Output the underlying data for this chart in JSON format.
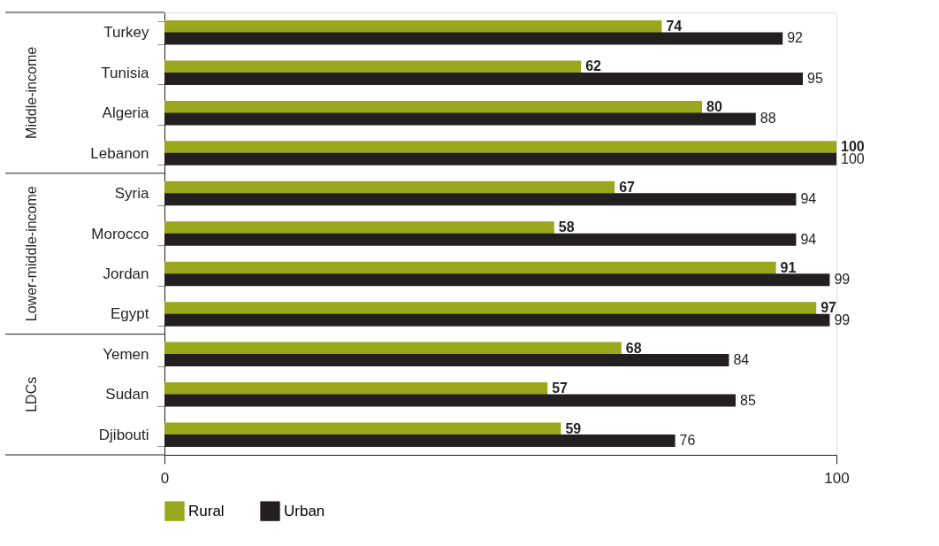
{
  "chart_data": {
    "type": "bar",
    "orientation": "horizontal",
    "categories": [
      "Turkey",
      "Tunisia",
      "Algeria",
      "Lebanon",
      "Syria",
      "Morocco",
      "Jordan",
      "Egypt",
      "Yemen",
      "Sudan",
      "Djibouti"
    ],
    "series": [
      {
        "name": "Rural",
        "color": "#9aa61c",
        "values": [
          74,
          62,
          80,
          100,
          67,
          58,
          91,
          97,
          68,
          57,
          59
        ]
      },
      {
        "name": "Urban",
        "color": "#231f20",
        "values": [
          92,
          95,
          88,
          100,
          94,
          94,
          99,
          99,
          84,
          85,
          76
        ]
      }
    ],
    "xlim": [
      0,
      100
    ],
    "xticks": [
      0,
      100
    ],
    "legend": "bottom",
    "data_labels": true,
    "annotations": [
      "Middle-income",
      "Lower-middle-income",
      "LDCs"
    ]
  }
}
